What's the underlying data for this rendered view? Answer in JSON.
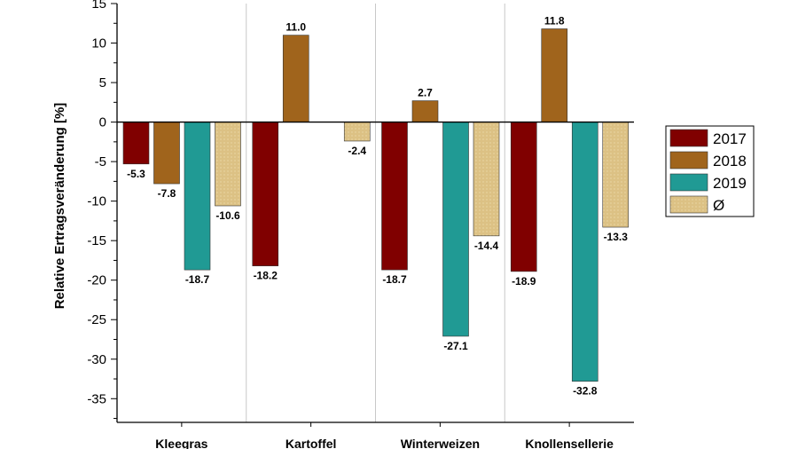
{
  "chart_data": {
    "type": "bar",
    "ylabel": "Relative Ertragsveränderung [%]",
    "xlabel": "",
    "ylim": [
      -38,
      15
    ],
    "yticks": [
      15,
      10,
      5,
      0,
      -5,
      -10,
      -15,
      -20,
      -25,
      -30,
      -35
    ],
    "categories": [
      "Kleegras",
      "Kartoffel",
      "Winterweizen",
      "Knollensellerie"
    ],
    "series": [
      {
        "name": "2017",
        "color": "#800000",
        "values": [
          -5.3,
          -18.2,
          -18.7,
          -18.9
        ],
        "labels": [
          "-5.3",
          "-18.2",
          "-18.7",
          "-18.9"
        ]
      },
      {
        "name": "2018",
        "color": "#a0641c",
        "values": [
          -7.8,
          11.0,
          2.7,
          11.8
        ],
        "labels": [
          "-7.8",
          "11.0",
          "2.7",
          "11.8"
        ]
      },
      {
        "name": "2019",
        "color": "#209a94",
        "values": [
          -18.7,
          null,
          -27.1,
          -32.8
        ],
        "labels": [
          "-18.7",
          "",
          "-27.1",
          "-32.8"
        ]
      },
      {
        "name": "Ø",
        "color": "#dcc184",
        "pattern": "dotted",
        "values": [
          -10.6,
          -2.4,
          -14.4,
          -13.3
        ],
        "labels": [
          "-10.6",
          "-2.4",
          "-14.4",
          "-13.3"
        ]
      }
    ],
    "grid": "vertical separators between categories",
    "legend": "right"
  }
}
